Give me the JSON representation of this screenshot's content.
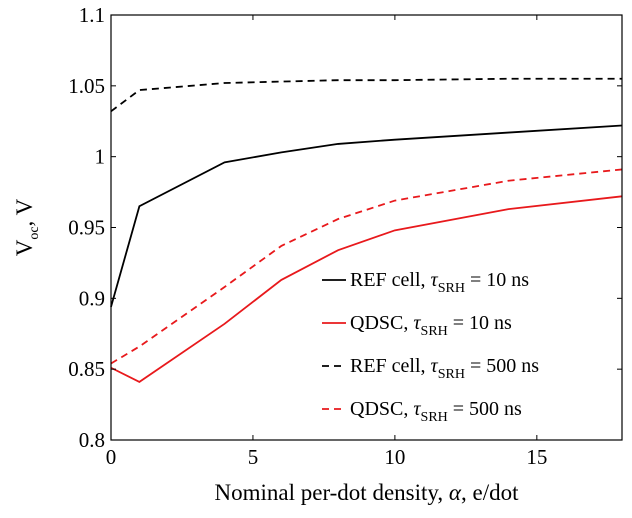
{
  "chart_data": {
    "type": "line",
    "title": "",
    "xlabel": "Nominal per-dot density, α, e/dot",
    "ylabel": "V_oc, V",
    "xlim": [
      0,
      18
    ],
    "ylim": [
      0.8,
      1.1
    ],
    "xticks": [
      "0",
      "5",
      "10",
      "15"
    ],
    "yticks": [
      "0.8",
      "0.85",
      "0.9",
      "0.95",
      "1",
      "1.05",
      "1.1"
    ],
    "grid": false,
    "legend_position": "bottom-right",
    "series": [
      {
        "name": "REF cell, τSRH = 10 ns",
        "color": "#000000",
        "dash": "solid",
        "points": [
          [
            0,
            0.894
          ],
          [
            1,
            0.965
          ],
          [
            4,
            0.996
          ],
          [
            6,
            1.003
          ],
          [
            8,
            1.009
          ],
          [
            10,
            1.012
          ],
          [
            14,
            1.017
          ],
          [
            18,
            1.022
          ]
        ]
      },
      {
        "name": "QDSC, τSRH = 10 ns",
        "color": "#e8191c",
        "dash": "solid",
        "points": [
          [
            0,
            0.851
          ],
          [
            1,
            0.841
          ],
          [
            4,
            0.882
          ],
          [
            6,
            0.913
          ],
          [
            8,
            0.934
          ],
          [
            10,
            0.948
          ],
          [
            14,
            0.963
          ],
          [
            18,
            0.972
          ]
        ]
      },
      {
        "name": "REF cell, τSRH = 500 ns",
        "color": "#000000",
        "dash": "dashed",
        "points": [
          [
            0,
            1.032
          ],
          [
            1,
            1.047
          ],
          [
            4,
            1.052
          ],
          [
            6,
            1.053
          ],
          [
            8,
            1.054
          ],
          [
            10,
            1.054
          ],
          [
            14,
            1.055
          ],
          [
            18,
            1.055
          ]
        ]
      },
      {
        "name": "QDSC, τSRH = 500 ns",
        "color": "#e8191c",
        "dash": "dashed",
        "points": [
          [
            0,
            0.854
          ],
          [
            1,
            0.866
          ],
          [
            4,
            0.908
          ],
          [
            6,
            0.937
          ],
          [
            8,
            0.956
          ],
          [
            10,
            0.969
          ],
          [
            14,
            0.983
          ],
          [
            18,
            0.991
          ]
        ]
      }
    ],
    "legend": [
      {
        "main": "REF cell, ",
        "tau": "τ",
        "sub": "SRH",
        "rest": " = 10 ns"
      },
      {
        "main": "QDSC, ",
        "tau": "τ",
        "sub": "SRH",
        "rest": " = 10 ns"
      },
      {
        "main": "REF cell, ",
        "tau": "τ",
        "sub": "SRH",
        "rest": " = 500 ns"
      },
      {
        "main": "QDSC, ",
        "tau": "τ",
        "sub": "SRH",
        "rest": " = 500 ns"
      }
    ],
    "ylabel_parts": {
      "main": "V",
      "sub": "oc",
      "rest": ", V"
    },
    "xlabel_parts": {
      "pre": "Nominal per-dot density, ",
      "alpha": "α",
      "post": ", e/dot"
    }
  }
}
